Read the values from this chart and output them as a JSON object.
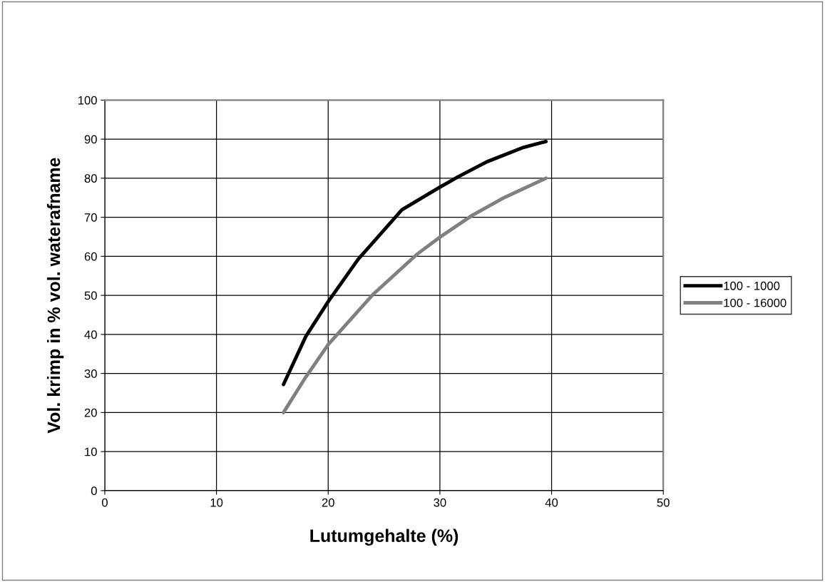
{
  "chart_data": {
    "type": "line",
    "xlabel": "Lutumgehalte (%)",
    "ylabel": "Vol. krimp in % vol. waterafname",
    "series": [
      {
        "name": "100 - 1000",
        "color": "#000000",
        "x": [
          16.0,
          18.0,
          20.0,
          22.7,
          26.6,
          30.0,
          31.6,
          34.2,
          37.5,
          39.5
        ],
        "values": [
          27.2,
          39.5,
          48.4,
          59.3,
          71.9,
          77.7,
          80.3,
          84.2,
          87.9,
          89.4
        ]
      },
      {
        "name": "100 - 16000",
        "color": "#808080",
        "x": [
          16.0,
          18.0,
          20.0,
          24.0,
          27.9,
          30.0,
          32.9,
          35.8,
          39.5
        ],
        "values": [
          20.0,
          29.1,
          37.4,
          50.2,
          60.4,
          64.9,
          70.5,
          75.1,
          80.0
        ]
      }
    ],
    "xlim": [
      0,
      50
    ],
    "xticks": [
      0,
      10,
      20,
      30,
      40,
      50
    ],
    "ylim": [
      0,
      100
    ],
    "yticks": [
      0,
      10,
      20,
      30,
      40,
      50,
      60,
      70,
      80,
      90,
      100
    ],
    "grid": true,
    "legend": "right",
    "marker": "none",
    "line_style": "solid"
  }
}
